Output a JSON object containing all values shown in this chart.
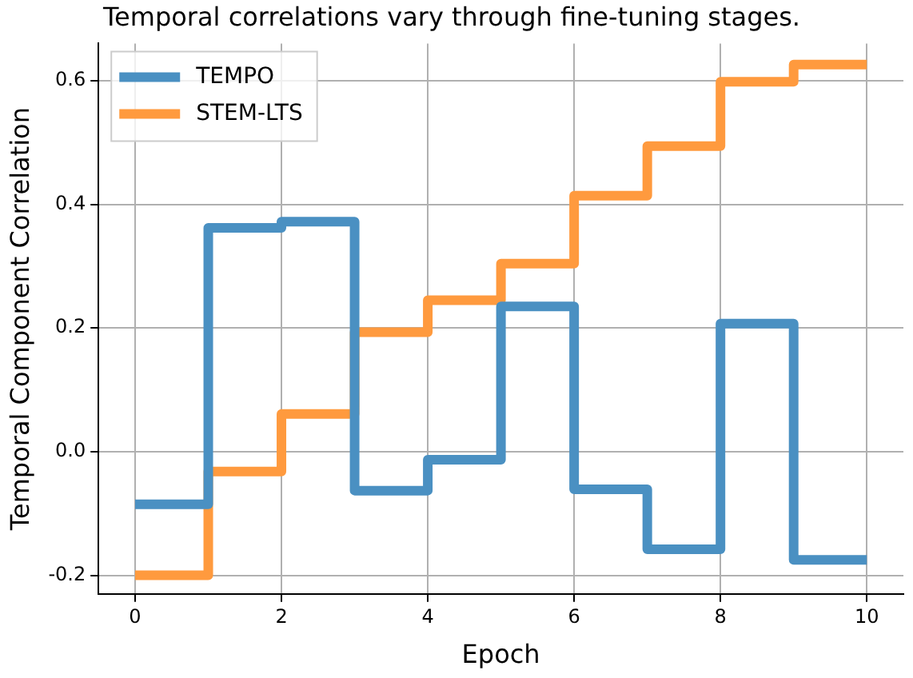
{
  "chart_data": {
    "type": "step",
    "title": "Temporal correlations vary through fine-tuning stages.",
    "xlabel": "Epoch",
    "ylabel": "Temporal Component Correlation",
    "x": [
      0,
      1,
      2,
      3,
      4,
      5,
      6,
      7,
      8,
      9,
      10
    ],
    "series": [
      {
        "name": "TEMPO",
        "color": "#4a90c2",
        "values": [
          -0.085,
          0.362,
          0.372,
          -0.063,
          -0.013,
          0.235,
          -0.061,
          -0.158,
          0.207,
          -0.175,
          -0.175
        ]
      },
      {
        "name": "STEM-LTS",
        "color": "#ff9a3e",
        "values": [
          -0.2,
          -0.032,
          0.061,
          0.193,
          0.245,
          0.304,
          0.414,
          0.494,
          0.598,
          0.626,
          0.626
        ]
      }
    ],
    "xlim": [
      -0.5,
      10.5
    ],
    "xticks": [
      0,
      2,
      4,
      6,
      8,
      10
    ],
    "ylim": [
      -0.23,
      0.66
    ],
    "yticks": [
      -0.2,
      {
        "value": 0,
        "label": "0.0"
      },
      0.2,
      0.4,
      0.6
    ],
    "grid": true,
    "legend": "top left",
    "marker": "none",
    "line_style": "solid"
  }
}
